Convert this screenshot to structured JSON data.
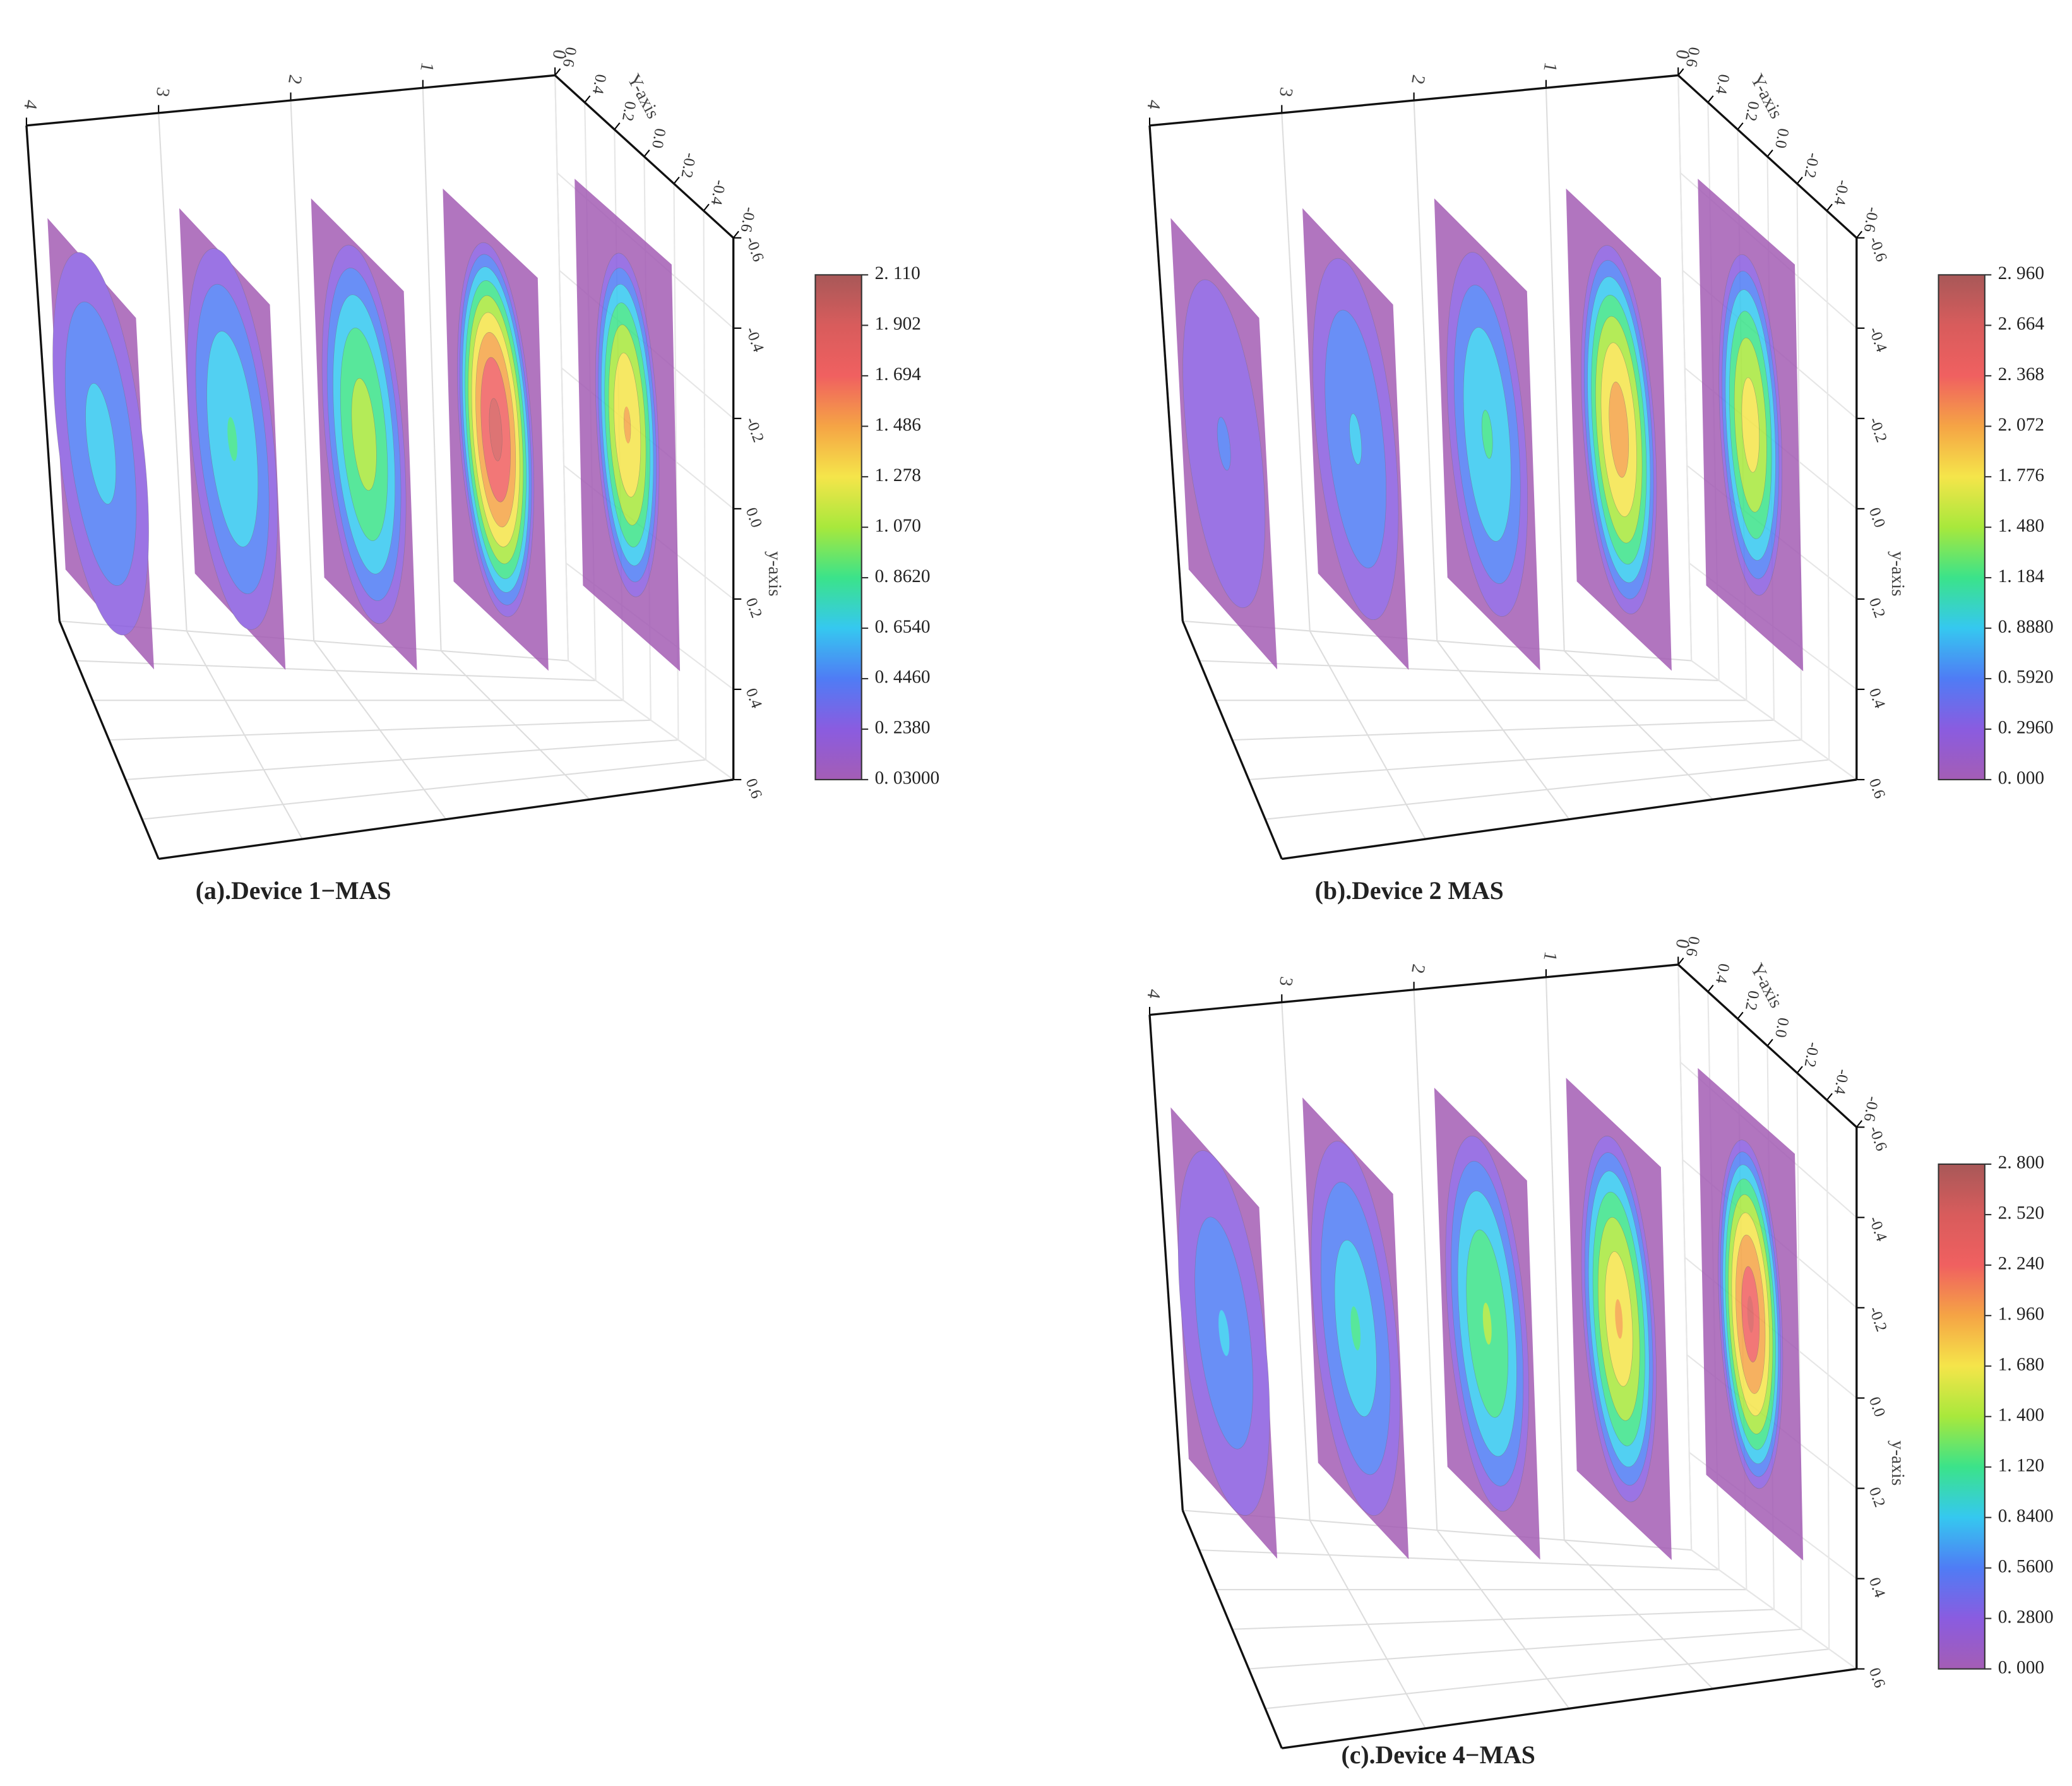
{
  "chart_data": [
    {
      "type": "slices3d",
      "caption": "(a).Device 1−MAS",
      "xlim": [
        0,
        4
      ],
      "xticks": [
        0,
        1,
        2,
        3,
        4
      ],
      "ylabel": "Y-axis",
      "ylim": [
        0.6,
        -0.6
      ],
      "yticks": [
        0.6,
        0.4,
        0.2,
        {
          "value": 0,
          "label": "0.0"
        },
        -0.2,
        -0.4,
        -0.6
      ],
      "zlabel": "y-axis",
      "zlim": [
        -0.6,
        0.6
      ],
      "zticks": [
        -0.6,
        -0.4,
        -0.2,
        {
          "value": 0,
          "label": "0.0"
        },
        0.2,
        0.4,
        0.6
      ],
      "clim": [
        0.03,
        2.11
      ],
      "cticks": [
        {
          "value": 0.03,
          "label": "0. 03000"
        },
        {
          "value": 0.238,
          "label": "0. 2380"
        },
        {
          "value": 0.446,
          "label": "0. 4460"
        },
        {
          "value": 0.654,
          "label": "0. 6540"
        },
        {
          "value": 0.862,
          "label": "0. 8620"
        },
        {
          "value": 1.07,
          "label": "1. 070"
        },
        {
          "value": 1.278,
          "label": "1. 278"
        },
        {
          "value": 1.486,
          "label": "1. 486"
        },
        {
          "value": 1.694,
          "label": "1. 694"
        },
        {
          "value": 1.902,
          "label": "1. 902"
        },
        {
          "value": 2.11,
          "label": "2. 110"
        }
      ],
      "colormap": [
        "#a45db5",
        "#8a5ce0",
        "#4f7cf5",
        "#35c8f0",
        "#3be38a",
        "#a8e83c",
        "#f5e54a",
        "#f5a445",
        "#f06060",
        "#d85c5c",
        "#a85858"
      ],
      "slice_x": [
        0,
        1,
        2,
        3,
        4
      ],
      "peaks": [
        1.5,
        1.95,
        1.15,
        0.85,
        0.7
      ]
    },
    {
      "type": "slices3d",
      "caption": "(b).Device 2 MAS",
      "xlim": [
        0,
        4
      ],
      "xticks": [
        0,
        1,
        2,
        3,
        4
      ],
      "ylabel": "Y-axis",
      "ylim": [
        0.6,
        -0.6
      ],
      "yticks": [
        0.6,
        0.4,
        0.2,
        {
          "value": 0,
          "label": "0.0"
        },
        -0.2,
        -0.4,
        -0.6
      ],
      "zlabel": "y-axis",
      "zlim": [
        -0.6,
        0.6
      ],
      "zticks": [
        -0.6,
        -0.4,
        -0.2,
        {
          "value": 0,
          "label": "0.0"
        },
        0.2,
        0.4,
        0.6
      ],
      "clim": [
        0,
        2.96
      ],
      "cticks": [
        {
          "value": 0,
          "label": "0. 000"
        },
        {
          "value": 0.296,
          "label": "0. 2960"
        },
        {
          "value": 0.592,
          "label": "0. 5920"
        },
        {
          "value": 0.888,
          "label": "0. 8880"
        },
        {
          "value": 1.184,
          "label": "1. 184"
        },
        {
          "value": 1.48,
          "label": "1. 480"
        },
        {
          "value": 1.776,
          "label": "1. 776"
        },
        {
          "value": 2.072,
          "label": "2. 072"
        },
        {
          "value": 2.368,
          "label": "2. 368"
        },
        {
          "value": 2.664,
          "label": "2. 664"
        },
        {
          "value": 2.96,
          "label": "2. 960"
        }
      ],
      "colormap": [
        "#a45db5",
        "#8a5ce0",
        "#4f7cf5",
        "#35c8f0",
        "#3be38a",
        "#a8e83c",
        "#f5e54a",
        "#f5a445",
        "#f06060",
        "#d85c5c",
        "#a85858"
      ],
      "slice_x": [
        0,
        1,
        2,
        3,
        4
      ],
      "peaks": [
        1.9,
        2.2,
        1.2,
        0.9,
        0.6
      ]
    },
    {
      "type": "slices3d",
      "caption": "(c).Device 4−MAS",
      "xlim": [
        0,
        4
      ],
      "xticks": [
        0,
        1,
        2,
        3,
        4
      ],
      "ylabel": "Y-axis",
      "ylim": [
        0.6,
        -0.6
      ],
      "yticks": [
        0.6,
        0.4,
        0.2,
        {
          "value": 0,
          "label": "0.0"
        },
        -0.2,
        -0.4,
        -0.6
      ],
      "zlabel": "y-axis",
      "zlim": [
        -0.6,
        0.6
      ],
      "zticks": [
        -0.6,
        -0.4,
        -0.2,
        {
          "value": 0,
          "label": "0.0"
        },
        0.2,
        0.4,
        0.6
      ],
      "clim": [
        0,
        2.8
      ],
      "cticks": [
        {
          "value": 0,
          "label": "0. 000"
        },
        {
          "value": 0.28,
          "label": "0. 2800"
        },
        {
          "value": 0.56,
          "label": "0. 5600"
        },
        {
          "value": 0.84,
          "label": "0. 8400"
        },
        {
          "value": 1.12,
          "label": "1. 120"
        },
        {
          "value": 1.4,
          "label": "1. 400"
        },
        {
          "value": 1.68,
          "label": "1. 680"
        },
        {
          "value": 1.96,
          "label": "1. 960"
        },
        {
          "value": 2.24,
          "label": "2. 240"
        },
        {
          "value": 2.52,
          "label": "2. 520"
        },
        {
          "value": 2.8,
          "label": "2. 800"
        }
      ],
      "colormap": [
        "#a45db5",
        "#8a5ce0",
        "#4f7cf5",
        "#35c8f0",
        "#3be38a",
        "#a8e83c",
        "#f5e54a",
        "#f5a445",
        "#f06060",
        "#d85c5c",
        "#a85858"
      ],
      "slice_x": [
        0,
        1,
        2,
        3,
        4
      ],
      "peaks": [
        2.4,
        1.9,
        1.4,
        1.0,
        0.75
      ]
    }
  ]
}
